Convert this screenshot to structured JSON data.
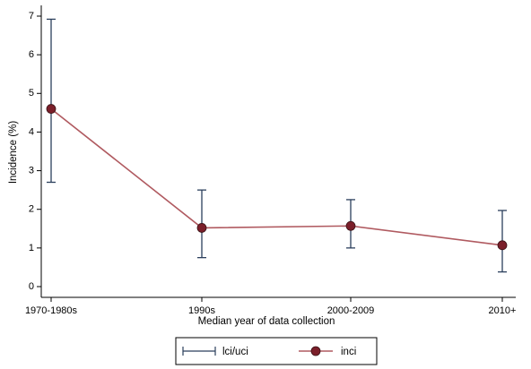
{
  "chart_data": {
    "type": "line",
    "title": "",
    "xlabel": "Median year of data collection",
    "ylabel": "Incidence (%)",
    "categories": [
      "1970-1980s",
      "1990s",
      "2000-2009",
      "2010+"
    ],
    "ylim": [
      0,
      7
    ],
    "yticks": [
      0,
      1,
      2,
      3,
      4,
      5,
      6,
      7
    ],
    "grid": false,
    "series": [
      {
        "name": "inci",
        "values": [
          4.6,
          1.52,
          1.57,
          1.07
        ],
        "color": "#7b1f2a",
        "line_color": "#b05a60"
      },
      {
        "name": "lci/uci",
        "lower": [
          2.7,
          0.75,
          1.0,
          0.38
        ],
        "upper": [
          6.92,
          2.5,
          2.25,
          1.97
        ],
        "color": "#2b3f5c"
      }
    ],
    "legend": {
      "position": "bottom",
      "items": [
        {
          "label": "lci/uci",
          "marker": "capped-line"
        },
        {
          "label": "inci",
          "marker": "line-dot"
        }
      ]
    }
  }
}
